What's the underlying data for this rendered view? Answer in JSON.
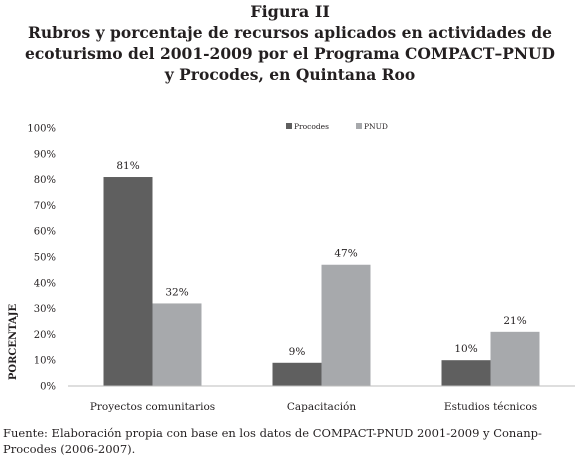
{
  "figure": {
    "label": "Figura II",
    "title_part1": "Rubros y porcentaje de recursos aplicados en actividades de ecoturismo del 2001-2009 por el Programa",
    "title_sc": "COMPACT–PNUD",
    "title_part2": "y Procodes, en Quintana Roo"
  },
  "source": {
    "prefix": "Fuente: Elaboración propia con base en los datos de",
    "sc": "COMPACT-PNUD",
    "suffix": "2001-2009 y Conanp-Procodes (2006-2007)."
  },
  "colors": {
    "procodes": "#5f5f5f",
    "pnud": "#a7a9ac",
    "grid": "#d9d9d9",
    "axis": "#bdbdbd"
  },
  "chart_data": {
    "type": "bar",
    "categories": [
      "Proyectos comunitarios",
      "Capacitación",
      "Estudios técnicos"
    ],
    "series": [
      {
        "name": "Procodes",
        "values": [
          81,
          9,
          10
        ]
      },
      {
        "name": "PNUD",
        "values": [
          32,
          47,
          21
        ]
      }
    ],
    "data_labels": [
      [
        "81%",
        "9%",
        "10%"
      ],
      [
        "32%",
        "47%",
        "21%"
      ]
    ],
    "ylabel": "PORCENTAJE",
    "xlabel": "",
    "ylim": [
      0,
      100
    ],
    "yticks": [
      0,
      10,
      20,
      30,
      40,
      50,
      60,
      70,
      80,
      90,
      100
    ],
    "ytick_labels": [
      "0%",
      "10%",
      "20%",
      "30%",
      "40%",
      "50%",
      "60%",
      "70%",
      "80%",
      "90%",
      "100%"
    ],
    "legend_position": "top-center",
    "grid": false
  }
}
